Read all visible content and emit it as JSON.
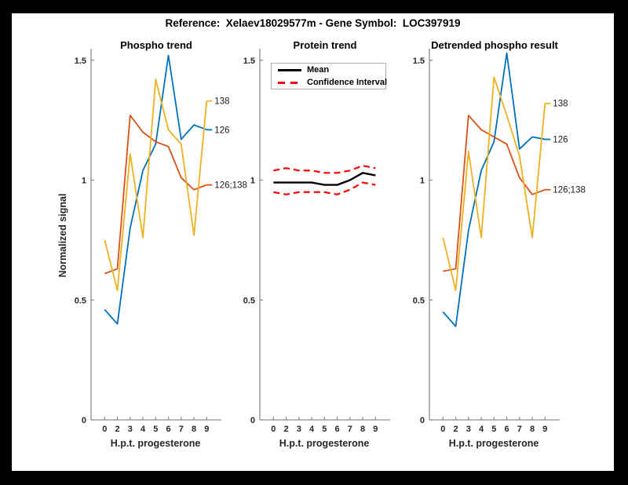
{
  "window": {
    "title": "Reference:  Xelaev18029577m - Gene Symbol:  LOC397919"
  },
  "colors": {
    "background": "#000000",
    "figure_background": "#ffffff",
    "blue": "#0072BD",
    "orange": "#D95319",
    "yellow": "#EDB120",
    "ci_red": "#FF0000",
    "mean_black": "#000000",
    "axis_gray": "#8C8C8C",
    "text": "#262626"
  },
  "shared_axes": {
    "xlabel": "H.p.t. progesterone",
    "ylabel": "Normalized signal",
    "x_tick_labels": [
      "0",
      "2",
      "3",
      "4",
      "5",
      "6",
      "7",
      "8",
      "9"
    ],
    "y_tick_labels": [
      "0",
      "0.5",
      "1",
      "1.5"
    ],
    "y_tick_values": [
      0,
      0.5,
      1,
      1.5
    ],
    "ylim": [
      0,
      1.55
    ],
    "grid": "off"
  },
  "chart_data": [
    {
      "type": "line",
      "title": "Phospho trend",
      "xlabel": "H.p.t. progesterone",
      "ylabel": "Normalized signal",
      "categories": [
        "0",
        "2",
        "3",
        "4",
        "5",
        "6",
        "7",
        "8",
        "9"
      ],
      "ylim": [
        0,
        1.55
      ],
      "series": [
        {
          "name": "126",
          "color_key": "blue",
          "end_label": "126",
          "values": [
            0.46,
            0.4,
            0.8,
            1.04,
            1.15,
            1.52,
            1.17,
            1.23,
            1.21
          ]
        },
        {
          "name": "126;138",
          "color_key": "orange",
          "end_label": "126;138",
          "values": [
            0.61,
            0.63,
            1.27,
            1.2,
            1.16,
            1.14,
            1.01,
            0.96,
            0.98
          ]
        },
        {
          "name": "138",
          "color_key": "yellow",
          "end_label": "138",
          "values": [
            0.75,
            0.54,
            1.11,
            0.76,
            1.42,
            1.21,
            1.15,
            0.77,
            1.33
          ]
        }
      ]
    },
    {
      "type": "line",
      "title": "Protein trend",
      "xlabel": "H.p.t. progesterone",
      "categories": [
        "0",
        "2",
        "3",
        "4",
        "5",
        "6",
        "7",
        "8",
        "9"
      ],
      "ylim": [
        0,
        1.55
      ],
      "legend": {
        "position": "top-left",
        "items": [
          {
            "label": "Mean",
            "style": "solid",
            "color_key": "mean_black"
          },
          {
            "label": "Confidence Interval",
            "style": "dashed",
            "color_key": "ci_red"
          }
        ]
      },
      "series": [
        {
          "name": "Mean",
          "color_key": "mean_black",
          "style": "solid",
          "width": 2.4,
          "values": [
            0.99,
            0.99,
            0.99,
            0.99,
            0.98,
            0.98,
            1.0,
            1.03,
            1.02
          ]
        },
        {
          "name": "CI upper",
          "color_key": "ci_red",
          "style": "dashed",
          "width": 2.2,
          "values": [
            1.04,
            1.05,
            1.04,
            1.04,
            1.03,
            1.03,
            1.04,
            1.06,
            1.05
          ]
        },
        {
          "name": "CI lower",
          "color_key": "ci_red",
          "style": "dashed",
          "width": 2.2,
          "values": [
            0.95,
            0.94,
            0.95,
            0.95,
            0.95,
            0.94,
            0.96,
            0.99,
            0.98
          ]
        }
      ]
    },
    {
      "type": "line",
      "title": "Detrended phospho result",
      "xlabel": "H.p.t. progesterone",
      "categories": [
        "0",
        "2",
        "3",
        "4",
        "5",
        "6",
        "7",
        "8",
        "9"
      ],
      "ylim": [
        0,
        1.55
      ],
      "series": [
        {
          "name": "126",
          "color_key": "blue",
          "end_label": "126",
          "values": [
            0.45,
            0.39,
            0.79,
            1.04,
            1.16,
            1.53,
            1.13,
            1.18,
            1.17
          ]
        },
        {
          "name": "126;138",
          "color_key": "orange",
          "end_label": "126;138",
          "values": [
            0.62,
            0.63,
            1.27,
            1.21,
            1.18,
            1.15,
            1.01,
            0.94,
            0.96
          ]
        },
        {
          "name": "138",
          "color_key": "yellow",
          "end_label": "138",
          "values": [
            0.76,
            0.54,
            1.12,
            0.76,
            1.43,
            1.27,
            1.1,
            0.76,
            1.32
          ]
        }
      ]
    }
  ]
}
